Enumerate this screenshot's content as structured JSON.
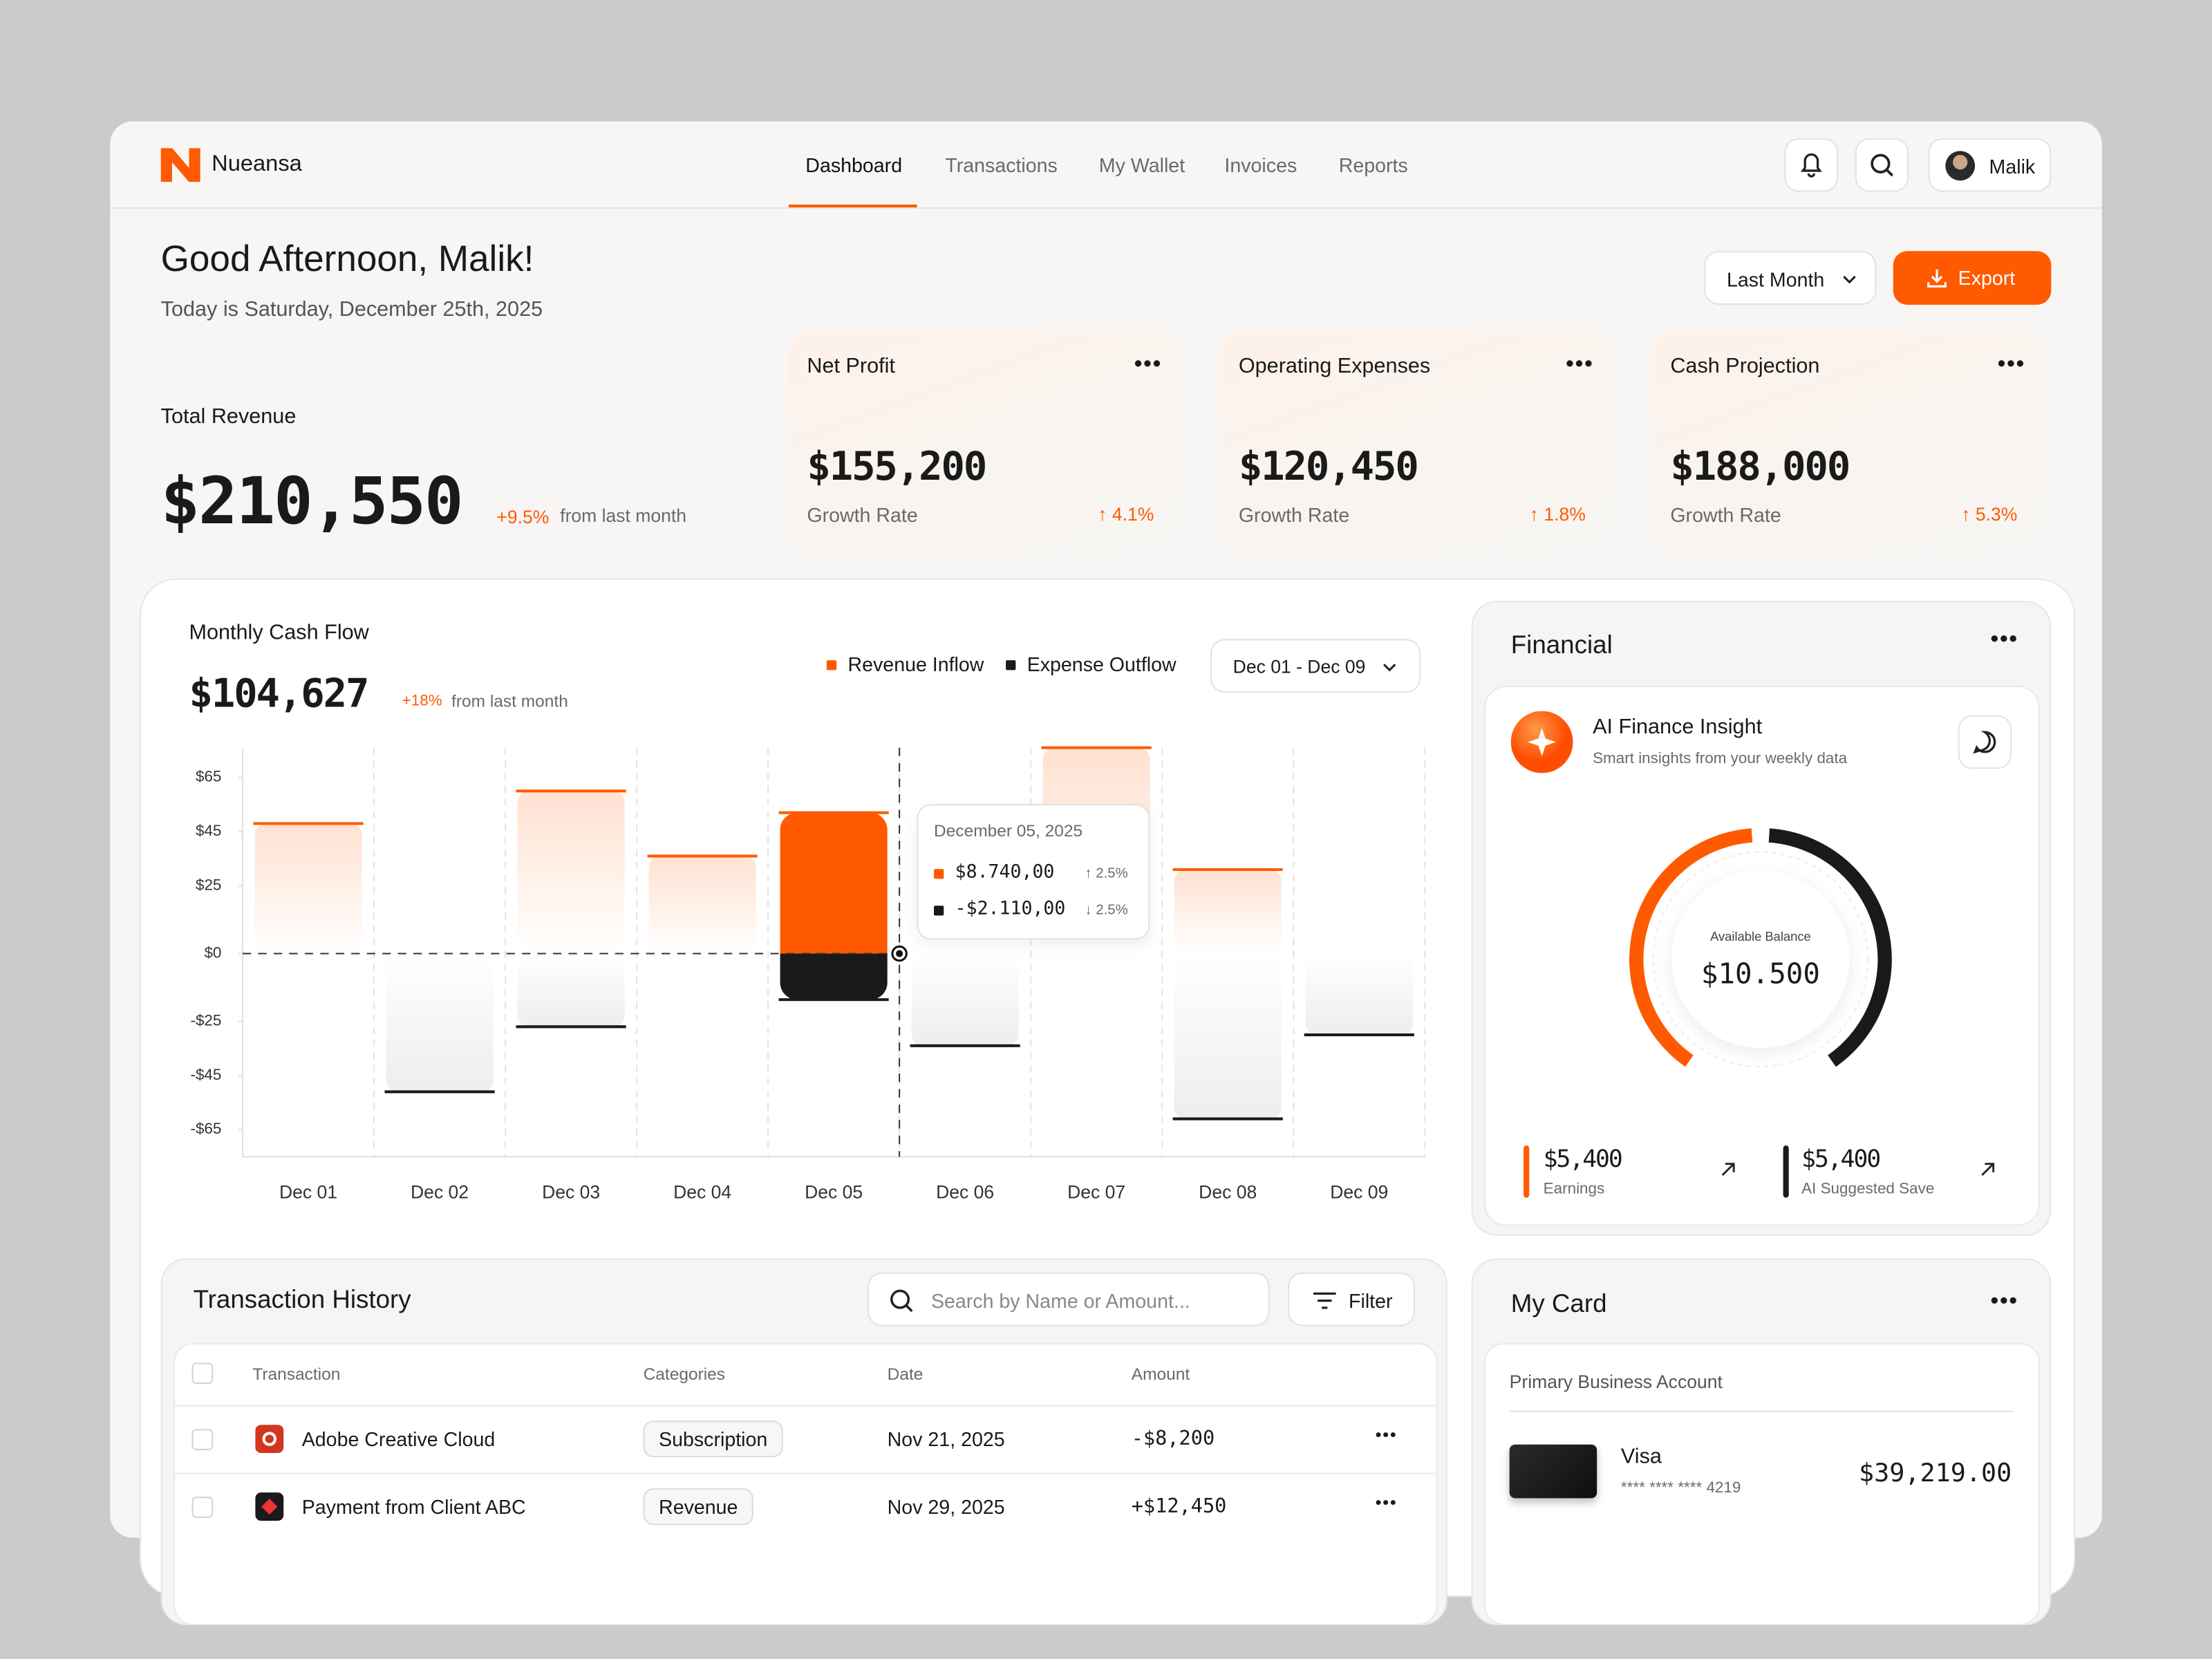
{
  "brand": "Nueansa",
  "nav": [
    "Dashboard",
    "Transactions",
    "My Wallet",
    "Invoices",
    "Reports"
  ],
  "user": "Malik",
  "greeting": "Good Afternoon, Malik!",
  "date_line": "Today is Saturday, December 25th, 2025",
  "period": "Last Month",
  "export": "Export",
  "total_revenue": {
    "label": "Total Revenue",
    "value": "$210,550",
    "change": "+9.5%",
    "note": "from last month"
  },
  "kpis": [
    {
      "title": "Net Profit",
      "value": "$155,200",
      "rate_label": "Growth Rate",
      "rate": "4.1%"
    },
    {
      "title": "Operating Expenses",
      "value": "$120,450",
      "rate_label": "Growth Rate",
      "rate": "1.8%"
    },
    {
      "title": "Cash Projection",
      "value": "$188,000",
      "rate_label": "Growth Rate",
      "rate": "5.3%"
    }
  ],
  "cash_flow": {
    "title": "Monthly Cash Flow",
    "value": "$104,627",
    "change": "+18%",
    "note": "from last month",
    "range": "Dec 01 - Dec 09",
    "tooltip": {
      "date": "December 05, 2025",
      "inflow": "$8.740,00",
      "inflow_change": "2.5%",
      "outflow": "-$2.110,00",
      "outflow_change": "2.5%"
    }
  },
  "chart_data": {
    "type": "bar",
    "categories": [
      "Dec 01",
      "Dec 02",
      "Dec 03",
      "Dec 04",
      "Dec 05",
      "Dec 06",
      "Dec 07",
      "Dec 08",
      "Dec 09"
    ],
    "series": [
      {
        "name": "Revenue Inflow",
        "color": "#ff5a00",
        "values": [
          48,
          null,
          60,
          36,
          52,
          null,
          76,
          31,
          null
        ]
      },
      {
        "name": "Expense Outflow",
        "color": "#1a1a1a",
        "values": [
          null,
          -51,
          -27,
          null,
          -17,
          -34,
          null,
          -61,
          -30
        ]
      }
    ],
    "ylim": [
      -75,
      76
    ],
    "yticks": [
      {
        "value": 65,
        "label": "$65"
      },
      {
        "value": 45,
        "label": "$45"
      },
      {
        "value": 25,
        "label": "$25"
      },
      {
        "value": 0,
        "label": "$0"
      },
      {
        "value": -25,
        "label": "-$25"
      },
      {
        "value": -45,
        "label": "-$45"
      },
      {
        "value": -65,
        "label": "-$65"
      }
    ],
    "active_index": 4
  },
  "financial": {
    "title": "Financial",
    "insight_title": "AI Finance Insight",
    "insight_sub": "Smart insights from your weekly data",
    "balance_label": "Available Balance",
    "balance": "$10.500",
    "stats": [
      {
        "value": "$5,400",
        "label": "Earnings"
      },
      {
        "value": "$5,400",
        "label": "AI Suggested Save"
      }
    ]
  },
  "transactions": {
    "title": "Transaction History",
    "search": "Search by Name or Amount...",
    "filter": "Filter",
    "columns": [
      "Transaction",
      "Categories",
      "Date",
      "Amount"
    ],
    "rows": [
      [
        "Adobe Creative Cloud",
        "Subscription",
        "Nov 21, 2025",
        "-$8,200"
      ],
      [
        "Payment from Client ABC",
        "Revenue",
        "Nov 29, 2025",
        "+$12,450"
      ]
    ]
  },
  "card": {
    "title": "My Card",
    "account": "Primary Business Account",
    "brand": "Visa",
    "number": "**** **** **** 4219",
    "balance": "$39,219.00"
  }
}
